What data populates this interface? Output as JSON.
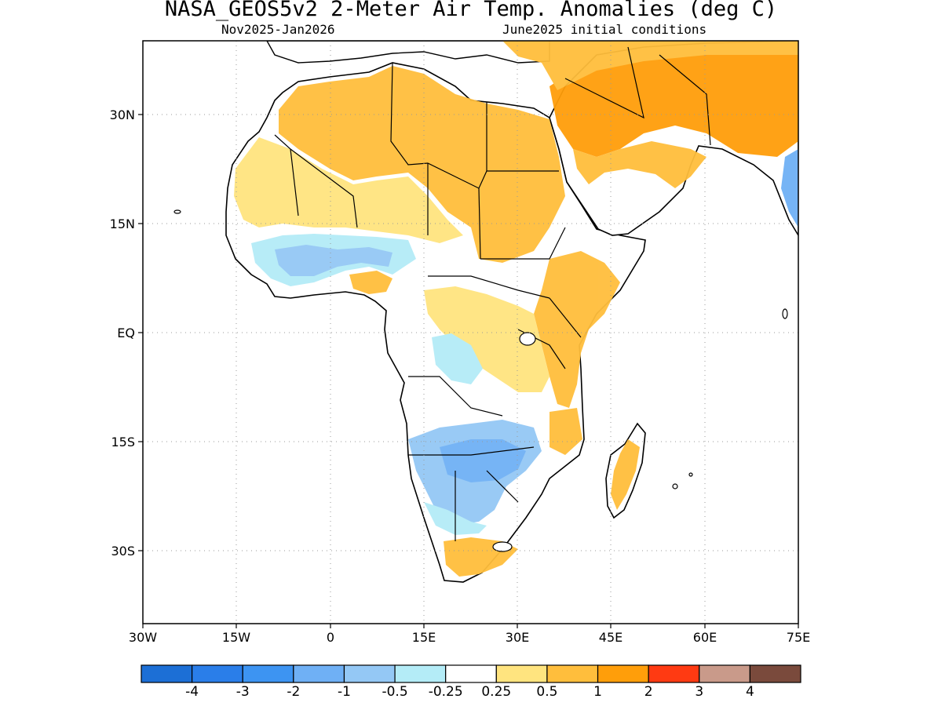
{
  "title": "NASA_GEOS5v2 2-Meter Air Temp. Anomalies (deg C)",
  "subtitle_left": "Nov2025-Jan2026",
  "subtitle_right": "June2025 initial conditions",
  "lat_labels": [
    "30N",
    "15N",
    "EQ",
    "15S",
    "30S"
  ],
  "lon_labels": [
    "30W",
    "15W",
    "0",
    "15E",
    "30E",
    "45E",
    "60E",
    "75E"
  ],
  "colorbar": {
    "labels": [
      "-4",
      "-3",
      "-2",
      "-1",
      "-0.5",
      "-0.25",
      "0.25",
      "0.5",
      "1",
      "2",
      "3",
      "4"
    ],
    "colors": [
      "#1c6fd6",
      "#2a7ee9",
      "#3d94f2",
      "#6fb0f5",
      "#94c8f5",
      "#b4ecf7",
      "#ffffff",
      "#ffe47f",
      "#ffbe3c",
      "#ff9e0a",
      "#ff3a12",
      "#c99a8a",
      "#7a4a3c"
    ]
  },
  "map": {
    "ocean_color": "#ffffff",
    "land_outline_color": "#000000",
    "grid_style": "dotted",
    "anomaly_colors": {
      "warm_light": "#ffe47f",
      "warm": "#ffbe3c",
      "warm_strong": "#ff9e0a",
      "cool_light": "#b4ecf7",
      "cool": "#94c8f5",
      "cool_strong": "#6fb0f5"
    }
  }
}
